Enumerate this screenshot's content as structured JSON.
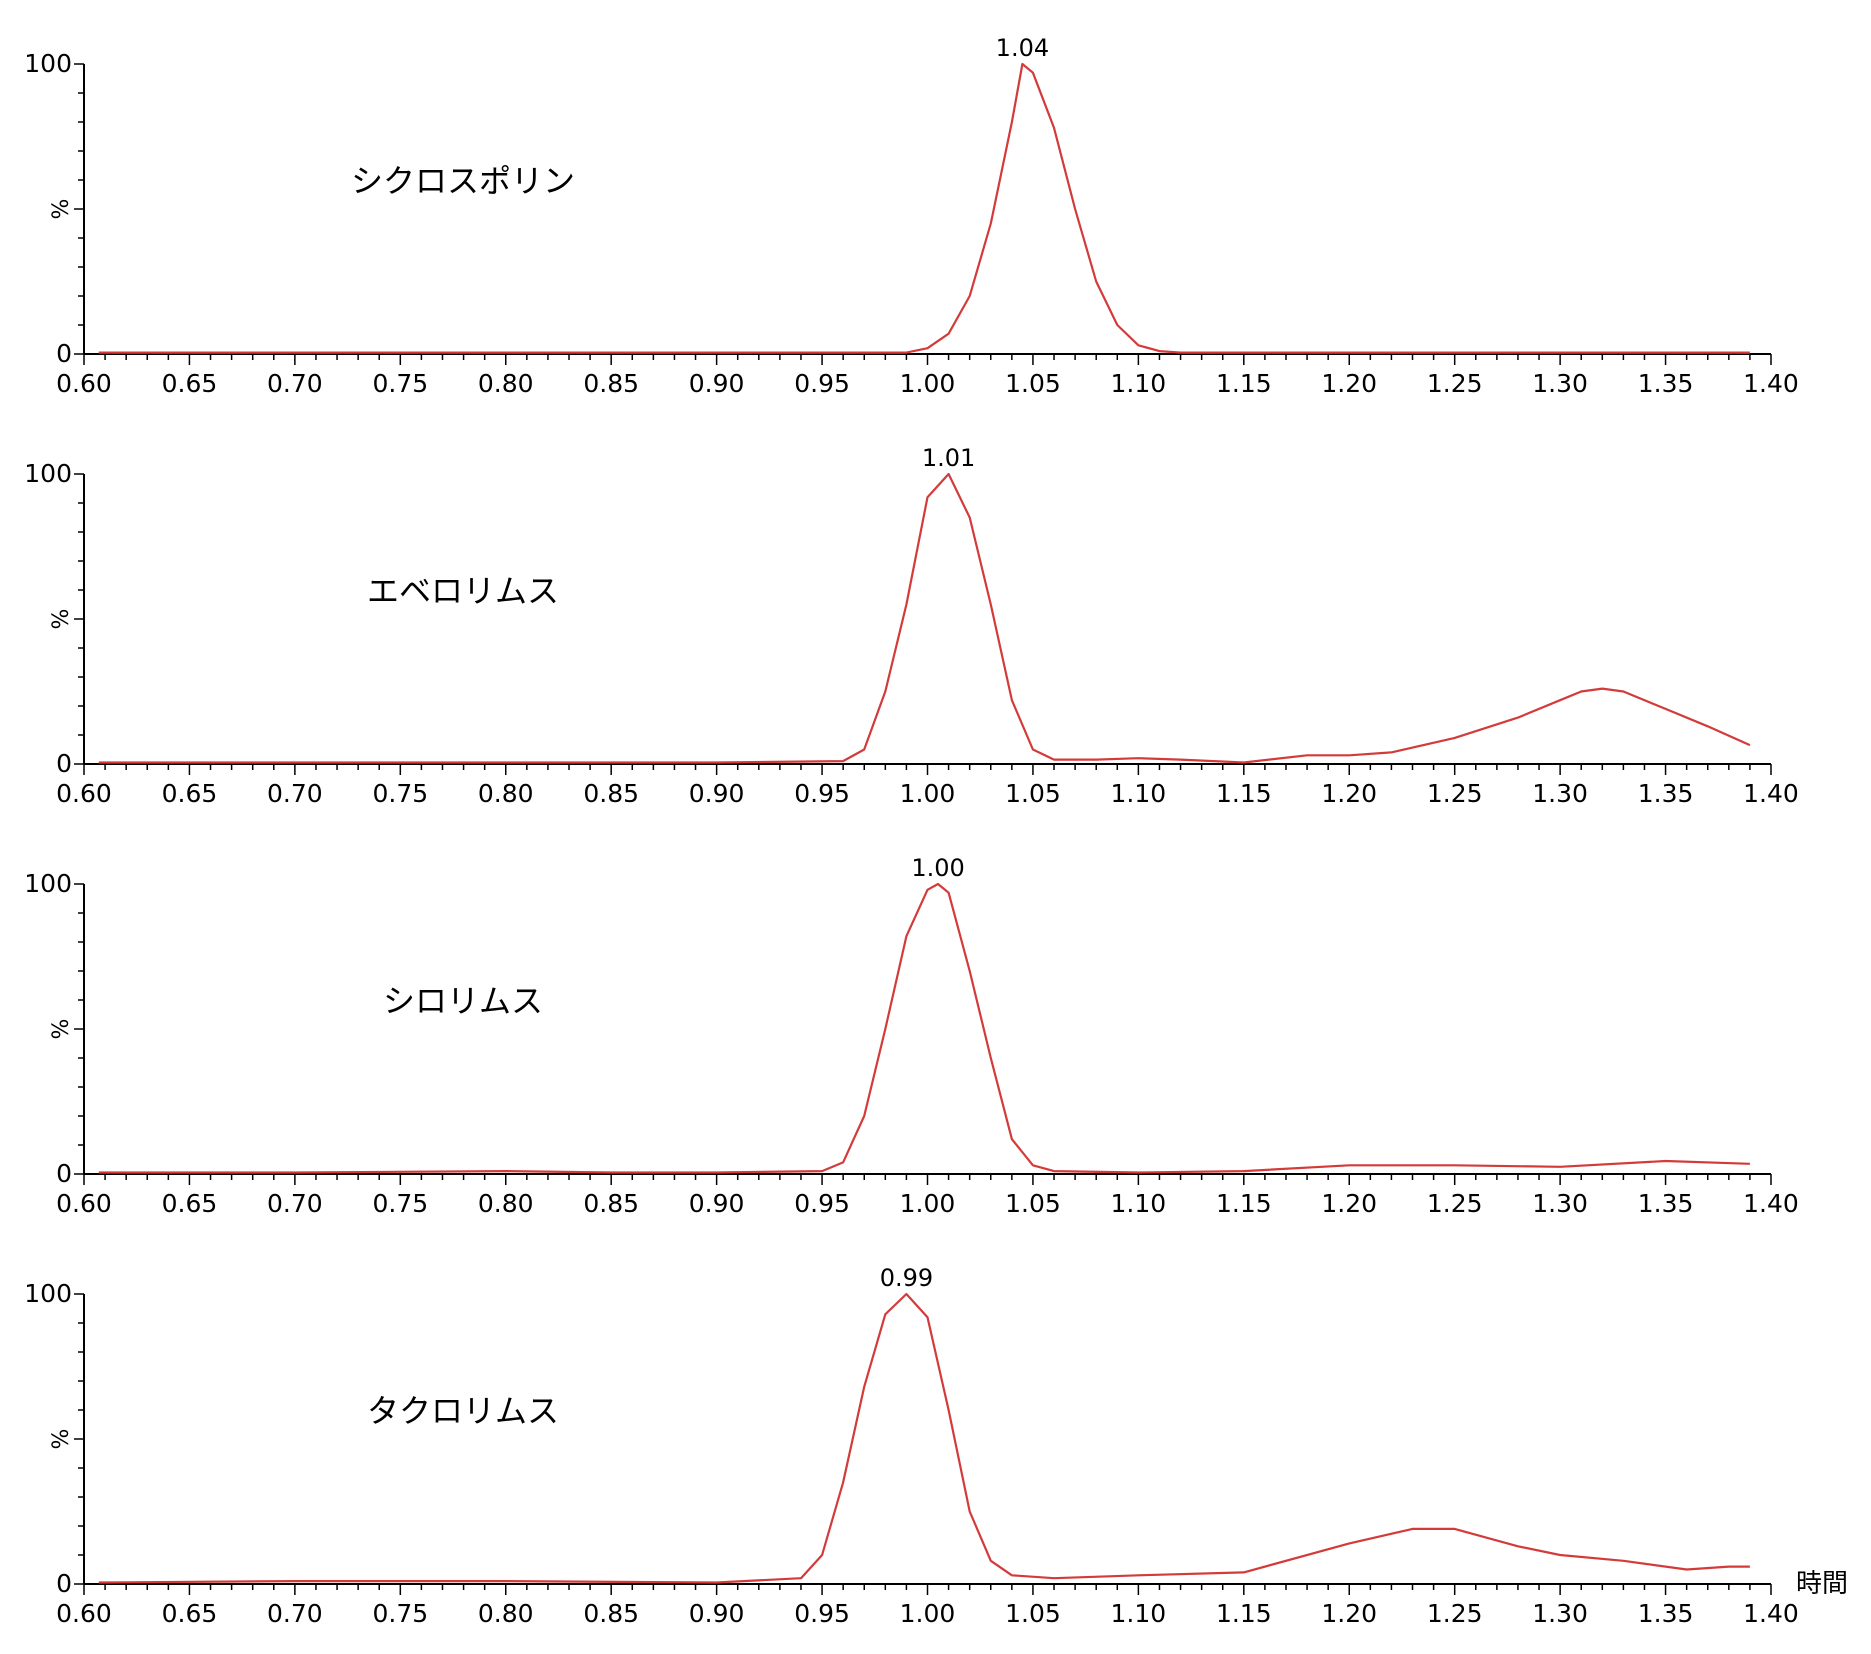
{
  "chart_data": [
    {
      "type": "line",
      "title": "シクロスポリン",
      "ylabel": "%",
      "xlim": [
        0.6,
        1.4
      ],
      "ylim": [
        0,
        100
      ],
      "xticks": [
        "0.60",
        "0.65",
        "0.70",
        "0.75",
        "0.80",
        "0.85",
        "0.90",
        "0.95",
        "1.00",
        "1.05",
        "1.10",
        "1.15",
        "1.20",
        "1.25",
        "1.30",
        "1.35",
        "1.40"
      ],
      "yticks": [
        "0",
        "100"
      ],
      "color": "#d33b3b",
      "peak": {
        "x": 1.045,
        "y": 100,
        "label": "1.04"
      },
      "series": [
        {
          "x": [
            0.607,
            0.7,
            0.8,
            0.9,
            0.99,
            1.0,
            1.01,
            1.02,
            1.03,
            1.04,
            1.045,
            1.05,
            1.06,
            1.07,
            1.08,
            1.09,
            1.1,
            1.11,
            1.12,
            1.2,
            1.3,
            1.39
          ],
          "y": [
            0.5,
            0.5,
            0.5,
            0.5,
            0.5,
            2,
            7,
            20,
            45,
            80,
            100,
            97,
            78,
            50,
            25,
            10,
            3,
            1,
            0.5,
            0.5,
            0.5,
            0.5
          ]
        }
      ]
    },
    {
      "type": "line",
      "title": "エベロリムス",
      "ylabel": "%",
      "xlim": [
        0.6,
        1.4
      ],
      "ylim": [
        0,
        100
      ],
      "xticks": [
        "0.60",
        "0.65",
        "0.70",
        "0.75",
        "0.80",
        "0.85",
        "0.90",
        "0.95",
        "1.00",
        "1.05",
        "1.10",
        "1.15",
        "1.20",
        "1.25",
        "1.30",
        "1.35",
        "1.40"
      ],
      "yticks": [
        "0",
        "100"
      ],
      "color": "#d33b3b",
      "peak": {
        "x": 1.01,
        "y": 100,
        "label": "1.01"
      },
      "series": [
        {
          "x": [
            0.607,
            0.7,
            0.8,
            0.9,
            0.96,
            0.97,
            0.98,
            0.99,
            1.0,
            1.01,
            1.02,
            1.03,
            1.04,
            1.05,
            1.06,
            1.08,
            1.1,
            1.12,
            1.15,
            1.18,
            1.2,
            1.22,
            1.25,
            1.28,
            1.3,
            1.31,
            1.32,
            1.33,
            1.35,
            1.37,
            1.39
          ],
          "y": [
            0.5,
            0.5,
            0.5,
            0.5,
            1,
            5,
            25,
            55,
            92,
            100,
            85,
            55,
            22,
            5,
            1.5,
            1.5,
            2,
            1.5,
            0.5,
            3,
            3,
            4,
            9,
            16,
            22,
            25,
            26,
            25,
            19,
            13,
            6.5
          ]
        }
      ]
    },
    {
      "type": "line",
      "title": "シロリムス",
      "ylabel": "%",
      "xlim": [
        0.6,
        1.4
      ],
      "ylim": [
        0,
        100
      ],
      "xticks": [
        "0.60",
        "0.65",
        "0.70",
        "0.75",
        "0.80",
        "0.85",
        "0.90",
        "0.95",
        "1.00",
        "1.05",
        "1.10",
        "1.15",
        "1.20",
        "1.25",
        "1.30",
        "1.35",
        "1.40"
      ],
      "yticks": [
        "0",
        "100"
      ],
      "color": "#d33b3b",
      "peak": {
        "x": 1.005,
        "y": 100,
        "label": "1.00"
      },
      "series": [
        {
          "x": [
            0.607,
            0.7,
            0.8,
            0.85,
            0.9,
            0.95,
            0.96,
            0.97,
            0.98,
            0.99,
            1.0,
            1.005,
            1.01,
            1.02,
            1.03,
            1.04,
            1.05,
            1.06,
            1.1,
            1.15,
            1.2,
            1.25,
            1.3,
            1.35,
            1.39
          ],
          "y": [
            0.5,
            0.5,
            1,
            0.5,
            0.5,
            1,
            4,
            20,
            50,
            82,
            98,
            100,
            97,
            70,
            40,
            12,
            3,
            1,
            0.5,
            1,
            3,
            3,
            2.5,
            4.5,
            3.5
          ]
        }
      ]
    },
    {
      "type": "line",
      "title": "タクロリムス",
      "ylabel": "%",
      "xlim": [
        0.6,
        1.4
      ],
      "ylim": [
        0,
        100
      ],
      "xticks": [
        "0.60",
        "0.65",
        "0.70",
        "0.75",
        "0.80",
        "0.85",
        "0.90",
        "0.95",
        "1.00",
        "1.05",
        "1.10",
        "1.15",
        "1.20",
        "1.25",
        "1.30",
        "1.35",
        "1.40"
      ],
      "yticks": [
        "0",
        "100"
      ],
      "color": "#d33b3b",
      "peak": {
        "x": 0.99,
        "y": 100,
        "label": "0.99"
      },
      "series": [
        {
          "x": [
            0.607,
            0.7,
            0.8,
            0.9,
            0.94,
            0.95,
            0.96,
            0.97,
            0.98,
            0.99,
            1.0,
            1.01,
            1.02,
            1.03,
            1.04,
            1.06,
            1.1,
            1.15,
            1.2,
            1.23,
            1.25,
            1.28,
            1.3,
            1.33,
            1.36,
            1.38,
            1.39
          ],
          "y": [
            0.5,
            1,
            1,
            0.5,
            2,
            10,
            35,
            68,
            93,
            100,
            92,
            60,
            25,
            8,
            3,
            2,
            3,
            4,
            14,
            19,
            19,
            13,
            10,
            8,
            5,
            6,
            6
          ]
        }
      ]
    }
  ],
  "x_axis_unit": "時間"
}
